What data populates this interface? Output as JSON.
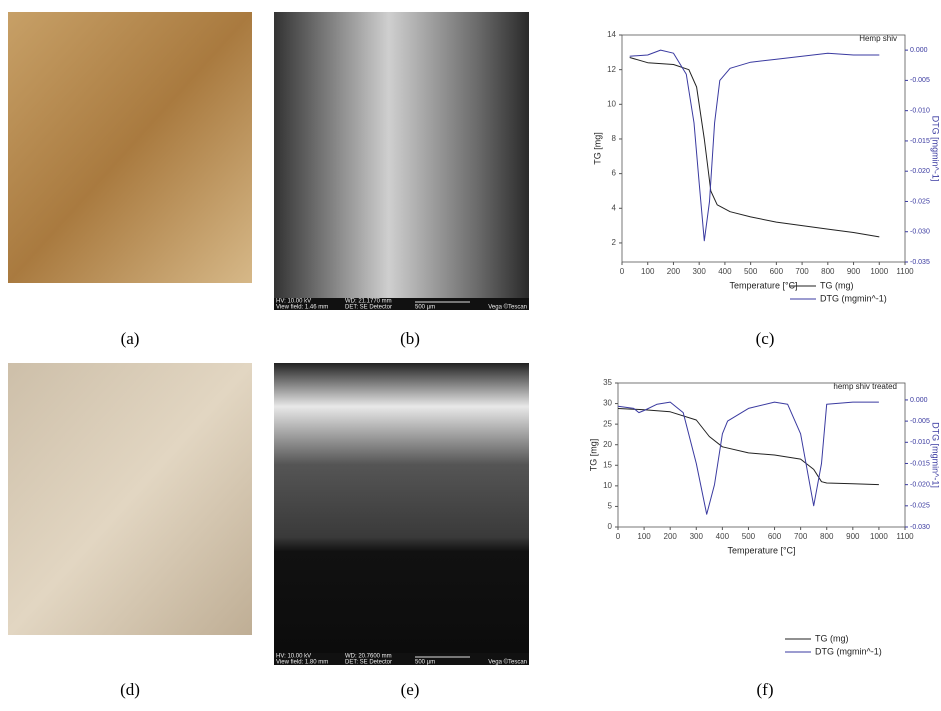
{
  "captions": [
    "(a)",
    "(b)",
    "(c)",
    "(d)",
    "(e)",
    "(f)"
  ],
  "sem_b": {
    "hv": "HV: 10.00 kV",
    "view_field": "View field: 1.46 mm",
    "wd": "WD: 21.1770 mm",
    "det": "DET: SE Detector",
    "scale": "500 µm",
    "brand": "Vega ©Tescan"
  },
  "sem_e": {
    "hv": "HV: 10.00 kV",
    "view_field": "View field: 1.80 mm",
    "wd": "WD: 20.7600 mm",
    "det": "DET: SE Detector",
    "scale": "500 µm",
    "brand": "Vega ©Tescan"
  },
  "chart_data": [
    {
      "type": "line",
      "title": "Hemp shiv",
      "x_label": "Temperature [°C]",
      "y_label": "TG [mg]",
      "y2_label": "DTG [mgmin^-1]",
      "xlim": [
        0,
        1100
      ],
      "xticks": [
        0,
        100,
        200,
        300,
        400,
        500,
        600,
        700,
        800,
        900,
        1000,
        1100
      ],
      "ylim": [
        0.9,
        14
      ],
      "yticks": [
        2,
        4,
        6,
        8,
        10,
        12,
        14
      ],
      "y2lim": [
        -0.035,
        0.0025
      ],
      "y2ticks": [
        {
          "value": 0,
          "label": "0.000"
        },
        {
          "value": -0.005,
          "label": "-0.005"
        },
        {
          "value": -0.01,
          "label": "-0.010"
        },
        {
          "value": -0.015,
          "label": "-0.015"
        },
        {
          "value": -0.02,
          "label": "-0.020"
        },
        {
          "value": -0.025,
          "label": "-0.025"
        },
        {
          "value": -0.03,
          "label": "-0.030"
        },
        {
          "value": -0.035,
          "label": "-0.035"
        }
      ],
      "series": [
        {
          "name": "TG (mg)",
          "color": "#222222",
          "x": [
            30,
            100,
            200,
            260,
            290,
            320,
            345,
            370,
            420,
            500,
            600,
            700,
            800,
            900,
            1000
          ],
          "values": [
            12.7,
            12.4,
            12.3,
            12.0,
            11.0,
            8.0,
            5.0,
            4.2,
            3.8,
            3.5,
            3.2,
            3.0,
            2.8,
            2.6,
            2.35
          ]
        },
        {
          "name": "DTG (mgmin^-1)",
          "color": "#3a3aa0",
          "axis": "y2",
          "x": [
            30,
            100,
            150,
            200,
            250,
            280,
            300,
            320,
            340,
            360,
            380,
            420,
            500,
            600,
            700,
            800,
            900,
            1000
          ],
          "values": [
            -0.001,
            -0.0008,
            0,
            -0.0005,
            -0.004,
            -0.012,
            -0.022,
            -0.0315,
            -0.025,
            -0.012,
            -0.005,
            -0.003,
            -0.002,
            -0.0015,
            -0.001,
            -0.0005,
            -0.0008,
            -0.0008
          ]
        }
      ]
    },
    {
      "type": "line",
      "title": "hemp shiv treated",
      "x_label": "Temperature [°C]",
      "y_label": "TG [mg]",
      "y2_label": "DTG [mgmin^-1]",
      "xlim": [
        0,
        1100
      ],
      "xticks": [
        0,
        100,
        200,
        300,
        400,
        500,
        600,
        700,
        800,
        900,
        1000,
        1100
      ],
      "ylim": [
        0,
        35
      ],
      "yticks": [
        0,
        5,
        10,
        15,
        20,
        25,
        30,
        35
      ],
      "y2lim": [
        -0.03,
        0.004
      ],
      "y2ticks": [
        {
          "value": 0,
          "label": "0.000"
        },
        {
          "value": -0.005,
          "label": "-0.005"
        },
        {
          "value": -0.01,
          "label": "-0.010"
        },
        {
          "value": -0.015,
          "label": "-0.015"
        },
        {
          "value": -0.02,
          "label": "-0.020"
        },
        {
          "value": -0.025,
          "label": "-0.025"
        },
        {
          "value": -0.03,
          "label": "-0.030"
        }
      ],
      "series": [
        {
          "name": "TG (mg)",
          "color": "#222222",
          "x": [
            0,
            100,
            200,
            300,
            350,
            400,
            500,
            600,
            700,
            750,
            780,
            800,
            900,
            1000
          ],
          "values": [
            28.8,
            28.5,
            28.0,
            26.0,
            22.0,
            19.5,
            18.0,
            17.5,
            16.5,
            14.0,
            11.0,
            10.7,
            10.5,
            10.3
          ]
        },
        {
          "name": "DTG (mgmin^-1)",
          "color": "#3a3aa0",
          "axis": "y2",
          "x": [
            0,
            60,
            80,
            100,
            150,
            200,
            250,
            300,
            340,
            370,
            400,
            420,
            500,
            600,
            650,
            700,
            750,
            780,
            800,
            900,
            1000
          ],
          "values": [
            -0.0015,
            -0.002,
            -0.003,
            -0.0025,
            -0.001,
            -0.0005,
            -0.003,
            -0.015,
            -0.027,
            -0.02,
            -0.008,
            -0.005,
            -0.002,
            -0.0005,
            -0.001,
            -0.008,
            -0.025,
            -0.015,
            -0.001,
            -0.0005,
            -0.0005
          ]
        }
      ]
    }
  ]
}
